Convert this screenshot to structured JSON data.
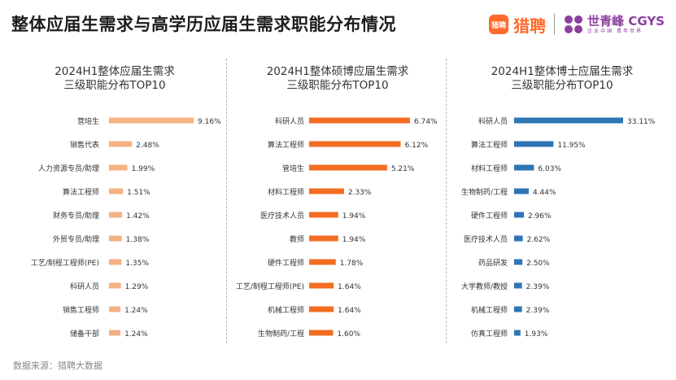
{
  "page": {
    "title": "整体应届生需求与高学历应届生需求职能分布情况",
    "source": "数据来源：猎聘大数据"
  },
  "logos": {
    "liepin_badge": "猎聘",
    "liepin_name": "猎聘",
    "cgys_main": "世青峰 CGYS",
    "cgys_sub": "企业中国 青年世界"
  },
  "colors": {
    "overall": "#F4B183",
    "master": "#F36C21",
    "phd": "#2E75B6"
  },
  "chart_data": [
    {
      "type": "bar",
      "orientation": "horizontal",
      "title_line1": "2024H1整体应届生需求",
      "title_line2": "三级职能分布TOP10",
      "categories": [
        "营培生",
        "销售代表",
        "人力资源专员/助理",
        "算法工程师",
        "财务专员/助理",
        "外贸专员/助理",
        "工艺/制程工程师(PE)",
        "科研人员",
        "销售工程师",
        "储备干部"
      ],
      "values": [
        9.16,
        2.48,
        1.99,
        1.51,
        1.42,
        1.38,
        1.35,
        1.29,
        1.24,
        1.24
      ],
      "labels": [
        "9.16%",
        "2.48%",
        "1.99%",
        "1.51%",
        "1.42%",
        "1.38%",
        "1.35%",
        "1.29%",
        "1.24%",
        "1.24%"
      ],
      "unit": "%"
    },
    {
      "type": "bar",
      "orientation": "horizontal",
      "title_line1": "2024H1整体硕博应届生需求",
      "title_line2": "三级职能分布TOP10",
      "categories": [
        "科研人员",
        "算法工程师",
        "管培生",
        "材料工程师",
        "医疗技术人员",
        "教师",
        "硬件工程师",
        "工艺/制程工程师(PE)",
        "机械工程师",
        "生物制药/工程"
      ],
      "values": [
        6.74,
        6.12,
        5.21,
        2.33,
        1.94,
        1.94,
        1.78,
        1.64,
        1.64,
        1.6
      ],
      "labels": [
        "6.74%",
        "6.12%",
        "5.21%",
        "2.33%",
        "1.94%",
        "1.94%",
        "1.78%",
        "1.64%",
        "1.64%",
        "1.60%"
      ],
      "unit": "%"
    },
    {
      "type": "bar",
      "orientation": "horizontal",
      "title_line1": "2024H1整体博士应届生需求",
      "title_line2": "三级职能分布TOP10",
      "categories": [
        "科研人员",
        "算法工程师",
        "材料工程师",
        "生物制药/工程",
        "硬件工程师",
        "医疗技术人员",
        "药品研发",
        "大学教师/教授",
        "机械工程师",
        "仿真工程师"
      ],
      "values": [
        33.11,
        11.95,
        6.03,
        4.44,
        2.96,
        2.62,
        2.5,
        2.39,
        2.39,
        1.93
      ],
      "labels": [
        "33.11%",
        "11.95%",
        "6.03%",
        "4.44%",
        "2.96%",
        "2.62%",
        "2.50%",
        "2.39%",
        "2.39%",
        "1.93%"
      ],
      "unit": "%"
    }
  ]
}
